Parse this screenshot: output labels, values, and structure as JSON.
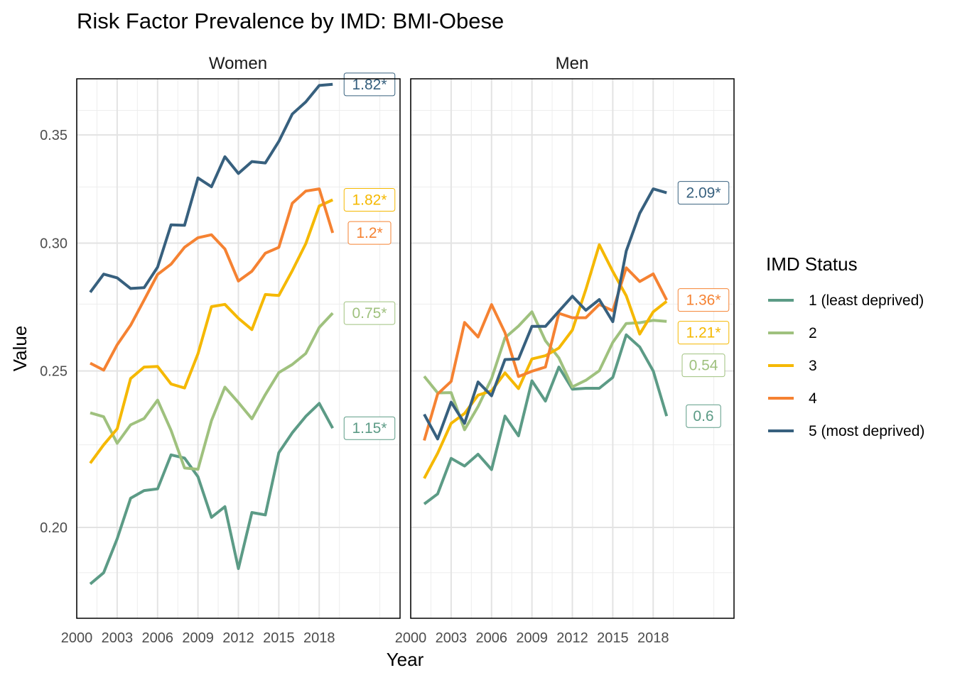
{
  "chart_data": {
    "type": "line",
    "title": "Risk Factor Prevalence by IMD: BMI-Obese",
    "xlabel": "Year",
    "ylabel": "Value",
    "x_ticks": [
      "2000",
      "2003",
      "2006",
      "2009",
      "2012",
      "2015",
      "2018"
    ],
    "y_ticks": [
      "0.20",
      "0.25",
      "0.30",
      "0.35"
    ],
    "xlim": [
      2000,
      2024
    ],
    "ylim": [
      0.1757,
      0.3792
    ],
    "y_scale": "log",
    "grid": true,
    "legend": {
      "title": "IMD Status",
      "position": "right",
      "items": [
        "1 (least deprived)",
        "2",
        "3",
        "4",
        "5 (most deprived)"
      ]
    },
    "colors": [
      "#5c9b86",
      "#9fc17e",
      "#f5b800",
      "#f58232",
      "#37607e"
    ],
    "x": [
      2001,
      2002,
      2003,
      2004,
      2005,
      2006,
      2007,
      2008,
      2009,
      2010,
      2011,
      2012,
      2013,
      2014,
      2015,
      2016,
      2017,
      2018,
      2019
    ],
    "panels": [
      {
        "title": "Women",
        "series": [
          {
            "name": "1 (least deprived)",
            "values": [
              0.1845,
              0.1875,
              0.1968,
              0.2085,
              0.2108,
              0.2113,
              0.2218,
              0.2208,
              0.215,
              0.2029,
              0.206,
              0.1886,
              0.2043,
              0.2036,
              0.2225,
              0.2289,
              0.2343,
              0.2387,
              0.2304
            ],
            "annotation": "1.15*"
          },
          {
            "name": "2",
            "values": [
              0.2355,
              0.2342,
              0.2255,
              0.2315,
              0.2336,
              0.2398,
              0.2297,
              0.2177,
              0.2173,
              0.2329,
              0.2443,
              0.239,
              0.2335,
              0.2417,
              0.2494,
              0.2523,
              0.2563,
              0.266,
              0.2715
            ],
            "annotation": "0.75*"
          },
          {
            "name": "3",
            "values": [
              0.2192,
              0.225,
              0.2302,
              0.2473,
              0.2514,
              0.2516,
              0.2454,
              0.244,
              0.2562,
              0.274,
              0.2749,
              0.2695,
              0.2652,
              0.2788,
              0.2784,
              0.2884,
              0.2997,
              0.3163,
              0.3191
            ],
            "annotation": "1.82*"
          },
          {
            "name": "4",
            "values": [
              0.2528,
              0.2503,
              0.2595,
              0.2668,
              0.2766,
              0.2869,
              0.2911,
              0.2982,
              0.3023,
              0.3036,
              0.2975,
              0.2842,
              0.2882,
              0.2957,
              0.2982,
              0.3175,
              0.3231,
              0.3241,
              0.3044
            ],
            "annotation": "1.2*"
          },
          {
            "name": "5 (most deprived)",
            "values": [
              0.2797,
              0.287,
              0.2855,
              0.2812,
              0.2815,
              0.2899,
              0.3079,
              0.3077,
              0.3292,
              0.3251,
              0.3393,
              0.3313,
              0.337,
              0.3363,
              0.3468,
              0.3606,
              0.3669,
              0.3756,
              0.3762
            ],
            "annotation": "1.82*"
          }
        ]
      },
      {
        "title": "Men",
        "series": [
          {
            "name": "1 (least deprived)",
            "values": [
              0.2068,
              0.2098,
              0.2207,
              0.2183,
              0.222,
              0.2172,
              0.2344,
              0.2279,
              0.2465,
              0.2395,
              0.2514,
              0.2436,
              0.2439,
              0.2439,
              0.2477,
              0.2632,
              0.2587,
              0.25,
              0.2344
            ],
            "annotation": "0.6"
          },
          {
            "name": "2",
            "values": [
              0.2481,
              0.2423,
              0.2424,
              0.2299,
              0.2376,
              0.2473,
              0.2621,
              0.2665,
              0.272,
              0.261,
              0.2547,
              0.2444,
              0.2467,
              0.2501,
              0.2604,
              0.2675,
              0.2678,
              0.2687,
              0.2683
            ],
            "annotation": "0.54"
          },
          {
            "name": "3",
            "values": [
              0.2145,
              0.2223,
              0.232,
              0.2353,
              0.2415,
              0.243,
              0.2493,
              0.2438,
              0.2543,
              0.2555,
              0.2583,
              0.265,
              0.2808,
              0.2993,
              0.2881,
              0.2783,
              0.2635,
              0.272,
              0.2761
            ],
            "annotation": "1.21*"
          },
          {
            "name": "4",
            "values": [
              0.2264,
              0.2419,
              0.2463,
              0.2679,
              0.2624,
              0.2748,
              0.264,
              0.248,
              0.2499,
              0.2514,
              0.2714,
              0.2697,
              0.2697,
              0.2749,
              0.2724,
              0.2896,
              0.284,
              0.2871,
              0.2766
            ],
            "annotation": "1.36*"
          },
          {
            "name": "5 (most deprived)",
            "values": [
              0.235,
              0.2269,
              0.2391,
              0.232,
              0.2461,
              0.2413,
              0.2541,
              0.2543,
              0.2664,
              0.2664,
              0.2722,
              0.2781,
              0.2726,
              0.2768,
              0.2682,
              0.2966,
              0.313,
              0.3241,
              0.3223
            ],
            "annotation": "2.09*"
          }
        ]
      }
    ]
  }
}
